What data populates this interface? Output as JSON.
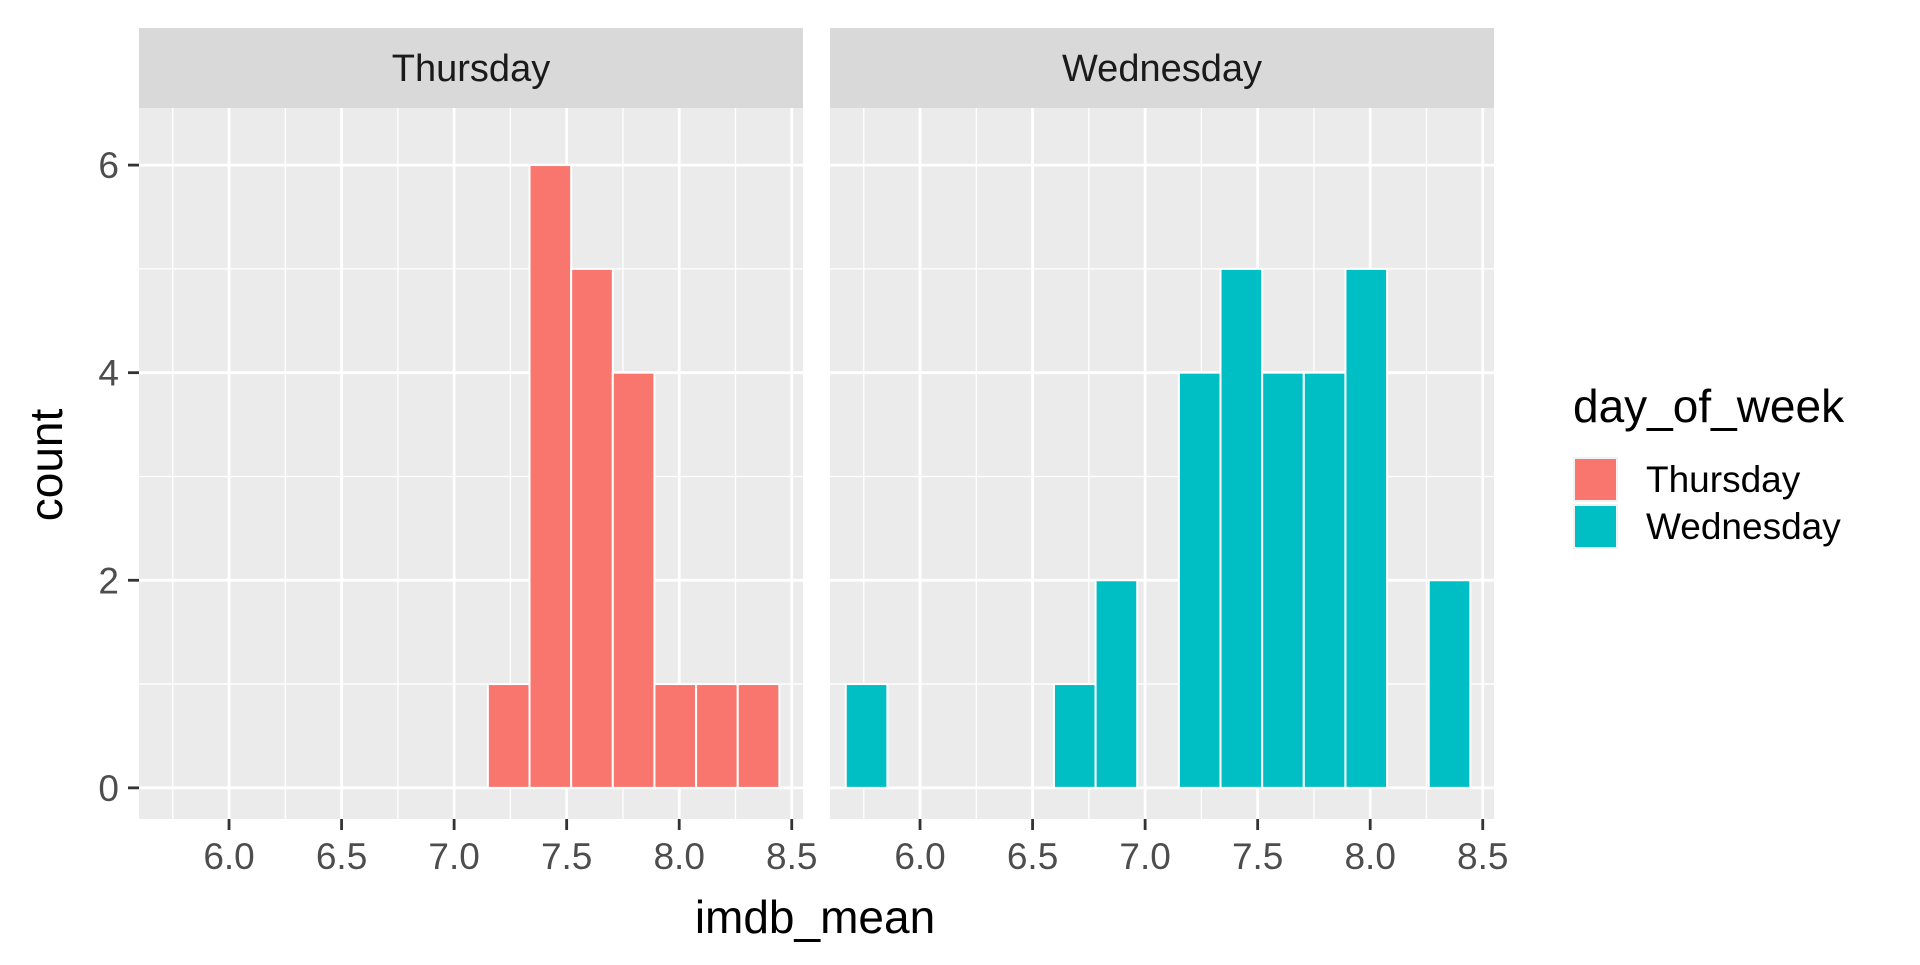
{
  "chart_data": {
    "type": "histogram",
    "xlabel": "imdb_mean",
    "ylabel": "count",
    "x_range": [
      5.6,
      8.55
    ],
    "y_range": [
      -0.3,
      6.55
    ],
    "x_ticks": [
      6.0,
      6.5,
      7.0,
      7.5,
      8.0,
      8.5
    ],
    "x_tick_labels": [
      "6.0",
      "6.5",
      "7.0",
      "7.5",
      "8.0",
      "8.5"
    ],
    "y_ticks": [
      0,
      2,
      4,
      6
    ],
    "y_tick_labels": [
      "0",
      "2",
      "4",
      "6"
    ],
    "bin_width": 0.185,
    "panels": [
      {
        "title": "Thursday",
        "color": "#F8766D",
        "bins": [
          {
            "start": 7.15,
            "count": 1
          },
          {
            "start": 7.335,
            "count": 6
          },
          {
            "start": 7.52,
            "count": 5
          },
          {
            "start": 7.705,
            "count": 4
          },
          {
            "start": 7.89,
            "count": 1
          },
          {
            "start": 8.075,
            "count": 1
          },
          {
            "start": 8.26,
            "count": 1
          }
        ]
      },
      {
        "title": "Wednesday",
        "color": "#00BFC4",
        "bins": [
          {
            "start": 5.67,
            "count": 1
          },
          {
            "start": 6.595,
            "count": 1
          },
          {
            "start": 6.78,
            "count": 2
          },
          {
            "start": 7.15,
            "count": 4
          },
          {
            "start": 7.335,
            "count": 5
          },
          {
            "start": 7.52,
            "count": 4
          },
          {
            "start": 7.705,
            "count": 4
          },
          {
            "start": 7.89,
            "count": 5
          },
          {
            "start": 8.26,
            "count": 2
          }
        ]
      }
    ],
    "legend": {
      "title": "day_of_week",
      "position": "right",
      "entries": [
        {
          "label": "Thursday",
          "color": "#F8766D"
        },
        {
          "label": "Wednesday",
          "color": "#00BFC4"
        }
      ]
    }
  }
}
